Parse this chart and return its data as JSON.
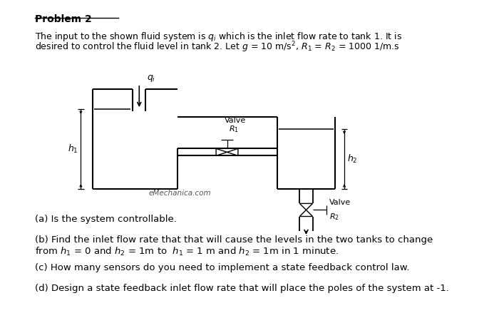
{
  "title": "Problem 2",
  "intro_line1": "The input to the shown fluid system is $q_i$ which is the inlet flow rate to tank 1. It is",
  "intro_line2": "desired to control the fluid level in tank 2. Let $g$ = 10 m/s$^2$, $R_1$ = $R_2$ = 1000 1/m.s",
  "part_a": "(a) Is the system controllable.",
  "part_b": "(b) Find the inlet flow rate that that will cause the levels in the two tanks to change\nfrom $h_1$ = 0 and $h_2$ = 1m to  $h_1$ = 1 m and $h_2$ = 1m in 1 minute.",
  "part_c": "(c) How many sensors do you need to implement a state feedback control law.",
  "part_d": "(d) Design a state feedback inlet flow rate that will place the poles of the system at -1.",
  "background_color": "#ffffff",
  "text_color": "#000000",
  "watermark": "eMechanica.com",
  "watermark_color": "#555555",
  "valve_r1_label": "Valve",
  "valve_r1_sub": "$R_1$",
  "valve_r2_label": "Valve",
  "valve_r2_sub": "$R_2$",
  "qi_label": "$q_i$",
  "h1_label": "$h_1$",
  "h2_label": "$h_2$"
}
